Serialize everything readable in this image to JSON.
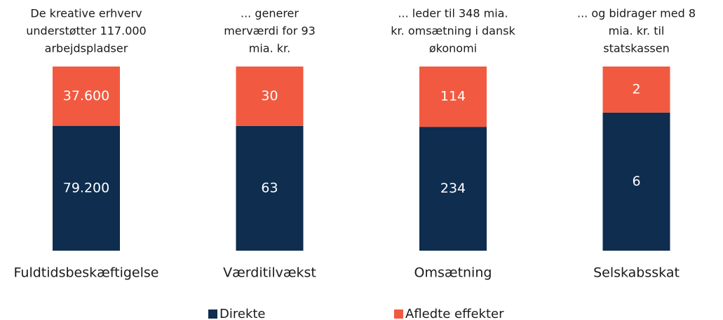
{
  "chart_data": {
    "type": "bar",
    "stacked": "percent",
    "categories": [
      "Fuldtidsbeskæftigelse",
      "Værditilvækst",
      "Omsætning",
      "Selskabsskat"
    ],
    "annotations": [
      [
        "De kreative erhverv",
        "understøtter 117.000",
        "arbejdspladser"
      ],
      [
        "... generer",
        "merværdi for 93",
        "mia. kr."
      ],
      [
        "... leder til 348 mia.",
        "kr. omsætning i dansk",
        "økonomi"
      ],
      [
        "... og bidrager med 8",
        "mia. kr. til",
        "statskassen"
      ]
    ],
    "series": [
      {
        "name": "Direkte",
        "color": "#0e2d4f",
        "values": [
          79200,
          63,
          234,
          6
        ],
        "value_labels": [
          "79.200",
          "63",
          "234",
          "6"
        ]
      },
      {
        "name": "Afledte effekter",
        "color": "#f15a40",
        "values": [
          37600,
          30,
          114,
          2
        ],
        "value_labels": [
          "37.600",
          "30",
          "114",
          "2"
        ]
      }
    ],
    "legend": "bottom"
  }
}
